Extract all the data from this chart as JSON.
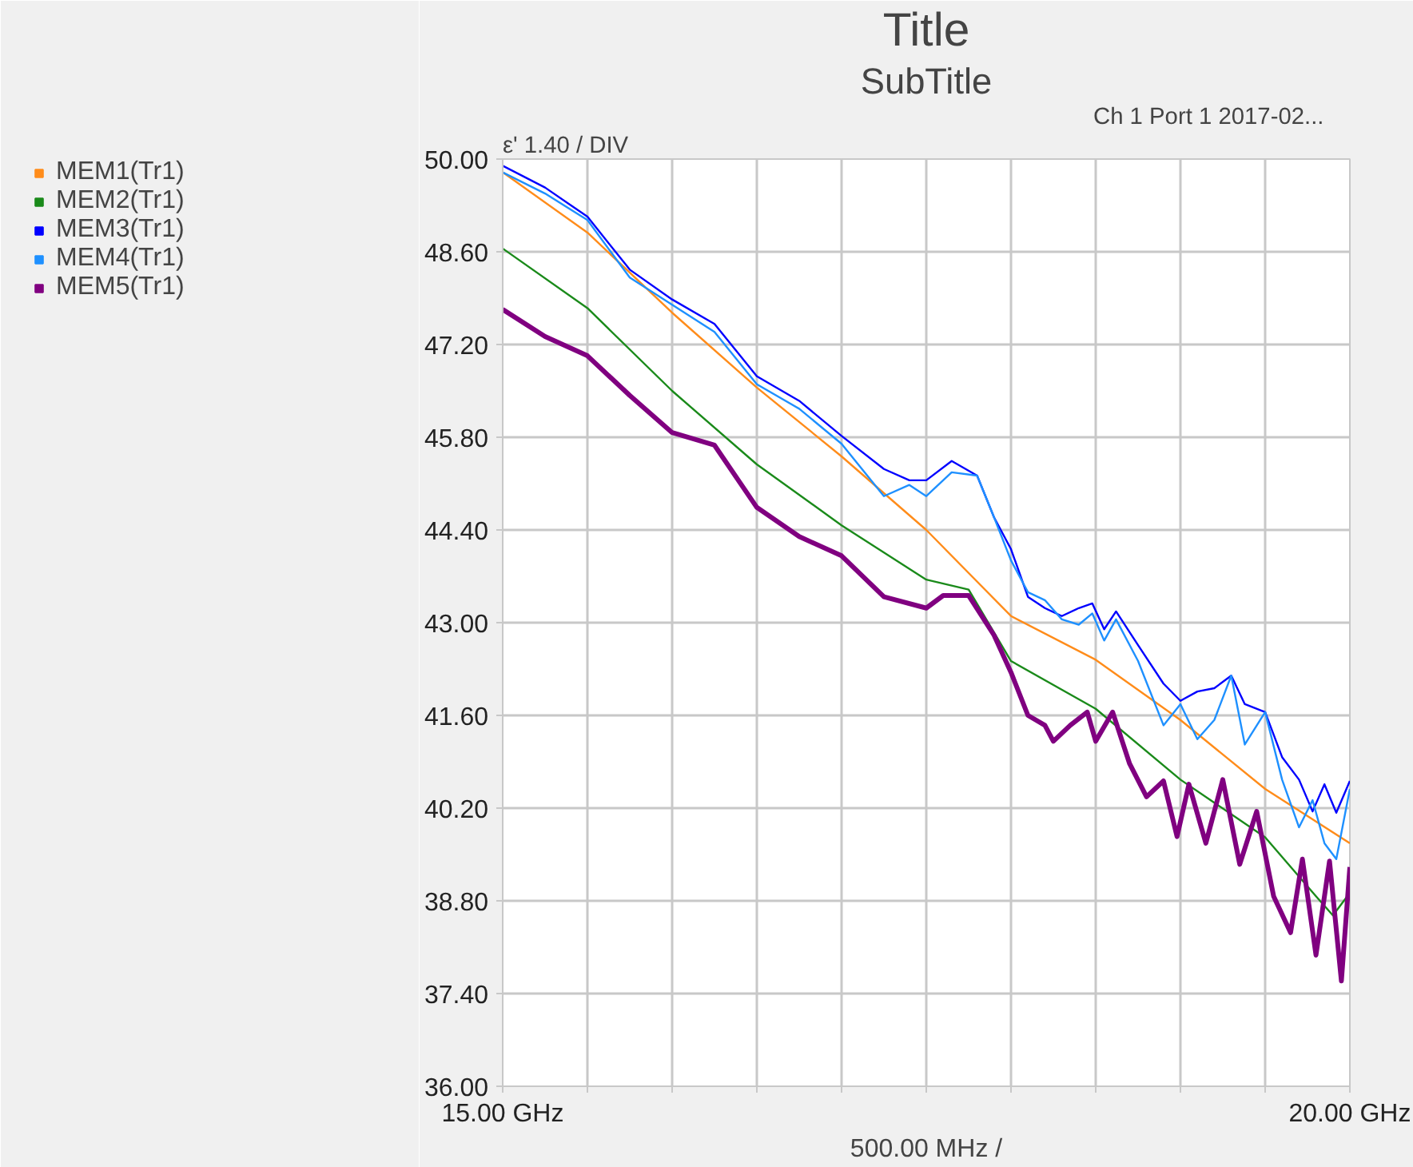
{
  "chart_data": {
    "type": "line",
    "title": "Title",
    "subtitle": "SubTitle",
    "xlabel": "500.00 MHz /",
    "annotations": [
      "ε'  1.40 / DIV",
      "Ch 1   Port 1   2017-02..."
    ],
    "xlim": [
      15,
      20
    ],
    "xticks": [
      {
        "value": 15,
        "label": "15.00 GHz"
      },
      {
        "value": 15.5,
        "label": null
      },
      {
        "value": 16,
        "label": null
      },
      {
        "value": 16.5,
        "label": null
      },
      {
        "value": 17,
        "label": null
      },
      {
        "value": 17.5,
        "label": null
      },
      {
        "value": 18,
        "label": null
      },
      {
        "value": 18.5,
        "label": null
      },
      {
        "value": 19,
        "label": null
      },
      {
        "value": 19.5,
        "label": null
      },
      {
        "value": 20,
        "label": "20.00 GHz"
      }
    ],
    "ylim": [
      36,
      50
    ],
    "yticks": [
      {
        "value": 36,
        "label": "36.00"
      },
      {
        "value": 37.4,
        "label": "37.40"
      },
      {
        "value": 38.8,
        "label": "38.80"
      },
      {
        "value": 40.2,
        "label": "40.20"
      },
      {
        "value": 41.6,
        "label": "41.60"
      },
      {
        "value": 43,
        "label": "43.00"
      },
      {
        "value": 44.4,
        "label": "44.40"
      },
      {
        "value": 45.8,
        "label": "45.80"
      },
      {
        "value": 47.2,
        "label": "47.20"
      },
      {
        "value": 48.6,
        "label": "48.60"
      },
      {
        "value": 50,
        "label": "50.00"
      }
    ],
    "grid": true,
    "legend": "top left",
    "marker": "none",
    "line_style": "solid",
    "series": [
      {
        "name": "MEM1(Tr1)",
        "color": "#ff8c1a",
        "x": [
          15,
          15.5,
          16,
          16.5,
          17,
          17.5,
          18,
          18.5,
          19,
          19.5,
          20
        ],
        "values": [
          49.8,
          48.89,
          47.68,
          46.55,
          45.51,
          44.4,
          43.1,
          42.44,
          41.53,
          40.49,
          39.67
        ]
      },
      {
        "name": "MEM2(Tr1)",
        "color": "#1a8a1a",
        "x": [
          15,
          15.5,
          16,
          16.5,
          17,
          17.5,
          17.75,
          18,
          18.5,
          19,
          19.5,
          19.8,
          19.9,
          20
        ],
        "values": [
          48.65,
          47.75,
          46.5,
          45.39,
          44.47,
          43.65,
          43.5,
          42.42,
          41.7,
          40.63,
          39.76,
          38.87,
          38.58,
          38.92
        ]
      },
      {
        "name": "MEM3(Tr1)",
        "color": "#0000ff",
        "x": [
          15,
          15.25,
          15.5,
          15.75,
          16,
          16.25,
          16.5,
          16.75,
          17,
          17.25,
          17.4,
          17.5,
          17.65,
          17.8,
          17.9,
          18,
          18.1,
          18.2,
          18.3,
          18.4,
          18.48,
          18.55,
          18.62,
          18.75,
          18.9,
          19,
          19.1,
          19.2,
          19.3,
          19.38,
          19.5,
          19.6,
          19.7,
          19.78,
          19.85,
          19.92,
          20
        ],
        "values": [
          49.9,
          49.57,
          49.13,
          48.33,
          47.88,
          47.51,
          46.72,
          46.35,
          45.82,
          45.32,
          45.15,
          45.15,
          45.44,
          45.22,
          44.59,
          44.11,
          43.39,
          43.22,
          43.1,
          43.22,
          43.29,
          42.9,
          43.17,
          42.66,
          42.08,
          41.82,
          41.96,
          42.01,
          42.2,
          41.77,
          41.65,
          40.97,
          40.63,
          40.15,
          40.56,
          40.13,
          40.61
        ]
      },
      {
        "name": "MEM4(Tr1)",
        "color": "#1e90ff",
        "x": [
          15,
          15.25,
          15.5,
          15.75,
          16,
          16.25,
          16.5,
          16.75,
          17,
          17.25,
          17.4,
          17.5,
          17.65,
          17.8,
          17.9,
          18,
          18.1,
          18.2,
          18.3,
          18.4,
          18.48,
          18.55,
          18.62,
          18.75,
          18.9,
          19,
          19.1,
          19.2,
          19.3,
          19.38,
          19.5,
          19.6,
          19.7,
          19.78,
          19.85,
          19.92,
          20
        ],
        "values": [
          49.8,
          49.48,
          49.08,
          48.21,
          47.8,
          47.39,
          46.6,
          46.23,
          45.7,
          44.91,
          45.08,
          44.91,
          45.27,
          45.22,
          44.59,
          43.94,
          43.46,
          43.34,
          43.05,
          42.97,
          43.14,
          42.73,
          43.05,
          42.42,
          41.45,
          41.77,
          41.24,
          41.53,
          42.2,
          41.16,
          41.65,
          40.63,
          39.91,
          40.32,
          39.67,
          39.43,
          40.49
        ]
      },
      {
        "name": "MEM5(Tr1)",
        "color": "#800080",
        "x": [
          15,
          15.25,
          15.5,
          15.75,
          16,
          16.25,
          16.5,
          16.75,
          17,
          17.25,
          17.5,
          17.6,
          17.75,
          17.9,
          18,
          18.1,
          18.2,
          18.25,
          18.35,
          18.45,
          18.5,
          18.6,
          18.7,
          18.8,
          18.9,
          18.98,
          19.05,
          19.15,
          19.25,
          19.35,
          19.45,
          19.55,
          19.65,
          19.72,
          19.8,
          19.88,
          19.95,
          20
        ],
        "values": [
          47.73,
          47.32,
          47.03,
          46.43,
          45.87,
          45.68,
          44.74,
          44.3,
          44.01,
          43.39,
          43.22,
          43.41,
          43.41,
          42.81,
          42.25,
          41.6,
          41.45,
          41.21,
          41.45,
          41.65,
          41.21,
          41.65,
          40.87,
          40.37,
          40.61,
          39.77,
          40.56,
          39.67,
          40.63,
          39.35,
          40.15,
          38.87,
          38.32,
          39.43,
          37.98,
          39.4,
          37.59,
          39.31
        ]
      }
    ]
  }
}
